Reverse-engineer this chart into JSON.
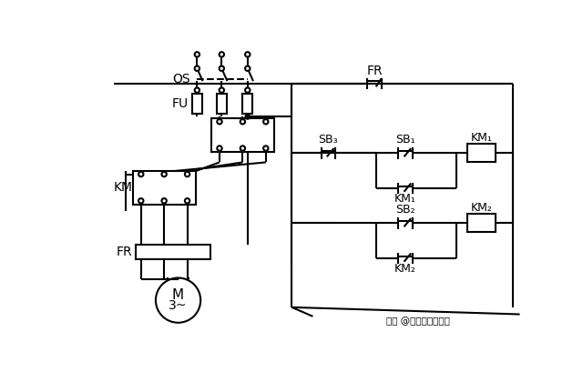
{
  "background_color": "#ffffff",
  "line_color": "#000000",
  "lw": 1.5,
  "labels": {
    "QS": "QS",
    "FU": "FU",
    "FR_top": "FR",
    "FR_bottom": "FR",
    "KM1": "KM₁",
    "KM2": "KM₂",
    "SB1": "SB₁",
    "SB2": "SB₂",
    "SB3": "SB₃",
    "M": "M",
    "M3": "3~"
  },
  "watermark": "头条 @电气自动化应用"
}
